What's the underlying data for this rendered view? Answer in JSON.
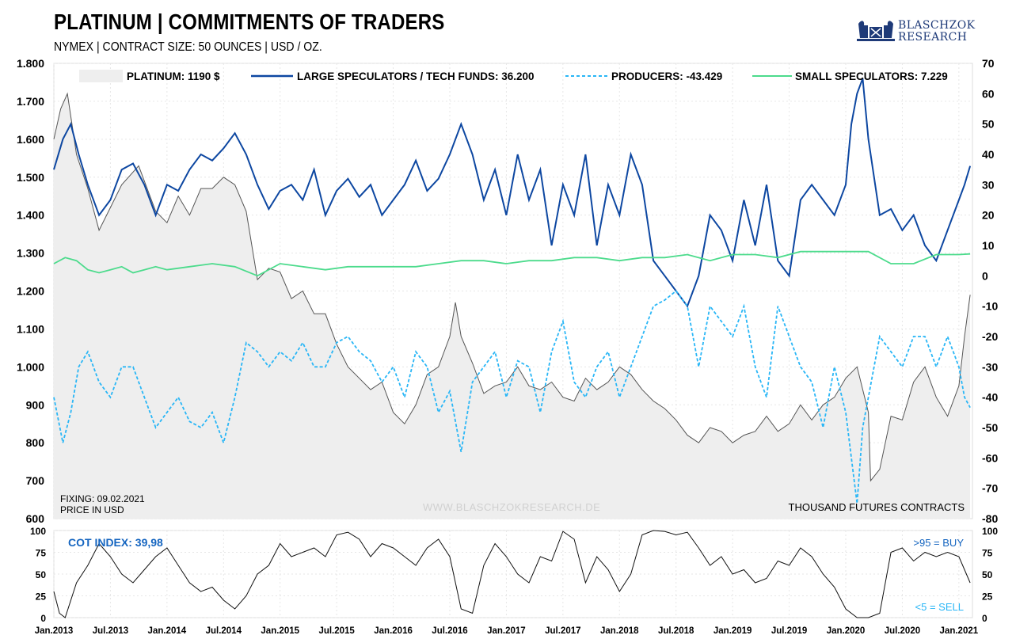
{
  "header": {
    "title": "PLATINUM | COMMITMENTS OF TRADERS",
    "subtitle": "NYMEX | CONTRACT SIZE: 50 OUNCES | USD / OZ."
  },
  "logo": {
    "line1": "BLASCHZOK",
    "line2": "RESEARCH"
  },
  "legend": {
    "platinum": "PLATINUM: 1190 $",
    "large_spec": "LARGE SPECULATORS / TECH FUNDS: 36.200",
    "producers": "PRODUCERS: -43.429",
    "small_spec": "SMALL SPECULATORS: 7.229"
  },
  "annotations": {
    "fixing": "FIXING: 09.02.2021",
    "price_in": "PRICE IN USD",
    "watermark": "WWW.BLASCHZOKRESEARCH.DE",
    "thousand": "THOUSAND  FUTURES  CONTRACTS",
    "cot_index": "COT INDEX: 39,98",
    "buy_signal": ">95 = BUY",
    "sell_signal": "<5 = SELL"
  },
  "colors": {
    "platinum_fill": "#eeeeee",
    "platinum_line": "#555555",
    "large_spec": "#0d47a1",
    "producers": "#29b6f6",
    "small_spec": "#4cdb8c",
    "cot_line": "#111111",
    "accent_blue": "#1565c0"
  },
  "chart_data": [
    {
      "type": "line",
      "title": "PLATINUM | COMMITMENTS OF TRADERS",
      "x_ticks": [
        "Jan.2013",
        "Jul.2013",
        "Jan.2014",
        "Jul.2014",
        "Jan.2015",
        "Jul.2015",
        "Jan.2016",
        "Jul.2016",
        "Jan.2017",
        "Jul.2017",
        "Jan.2018",
        "Jul.2018",
        "Jan.2019",
        "Jul.2019",
        "Jan.2020",
        "Jul.2020",
        "Jan.2021"
      ],
      "x_range": [
        2013.0,
        2021.12
      ],
      "left_axis": {
        "label": "PRICE IN USD",
        "range": [
          600,
          1800
        ],
        "ticks": [
          "600",
          "700",
          "800",
          "900",
          "1.000",
          "1.100",
          "1.200",
          "1.300",
          "1.400",
          "1.500",
          "1.600",
          "1.700",
          "1.800"
        ]
      },
      "right_axis": {
        "label": "THOUSAND FUTURES CONTRACTS",
        "range": [
          -80,
          70
        ],
        "ticks": [
          "-80",
          "-70",
          "-60",
          "-50",
          "-40",
          "-30",
          "-20",
          "-10",
          "0",
          "10",
          "20",
          "30",
          "40",
          "50",
          "60",
          "70"
        ]
      },
      "grid": true,
      "legend_position": "top",
      "series": [
        {
          "name": "PLATINUM",
          "axis": "left",
          "style": "area",
          "x": [
            2013.0,
            2013.06,
            2013.12,
            2013.2,
            2013.3,
            2013.4,
            2013.5,
            2013.6,
            2013.75,
            2013.9,
            2014.0,
            2014.1,
            2014.2,
            2014.3,
            2014.4,
            2014.5,
            2014.6,
            2014.7,
            2014.8,
            2014.9,
            2015.0,
            2015.1,
            2015.2,
            2015.3,
            2015.4,
            2015.5,
            2015.6,
            2015.7,
            2015.8,
            2015.9,
            2016.0,
            2016.1,
            2016.2,
            2016.3,
            2016.4,
            2016.5,
            2016.55,
            2016.6,
            2016.7,
            2016.8,
            2016.9,
            2017.0,
            2017.1,
            2017.2,
            2017.3,
            2017.4,
            2017.5,
            2017.6,
            2017.7,
            2017.8,
            2017.9,
            2018.0,
            2018.1,
            2018.2,
            2018.3,
            2018.4,
            2018.5,
            2018.6,
            2018.7,
            2018.8,
            2018.9,
            2019.0,
            2019.1,
            2019.2,
            2019.3,
            2019.4,
            2019.5,
            2019.6,
            2019.7,
            2019.8,
            2019.9,
            2020.0,
            2020.1,
            2020.2,
            2020.22,
            2020.3,
            2020.4,
            2020.5,
            2020.6,
            2020.7,
            2020.8,
            2020.9,
            2021.0,
            2021.05,
            2021.1
          ],
          "y": [
            1600,
            1680,
            1720,
            1560,
            1470,
            1360,
            1420,
            1480,
            1530,
            1410,
            1380,
            1450,
            1400,
            1470,
            1470,
            1500,
            1480,
            1410,
            1230,
            1260,
            1250,
            1180,
            1200,
            1140,
            1140,
            1060,
            1000,
            970,
            940,
            960,
            880,
            850,
            900,
            980,
            1000,
            1080,
            1170,
            1080,
            1010,
            930,
            950,
            960,
            1000,
            950,
            940,
            960,
            920,
            910,
            970,
            940,
            960,
            1000,
            980,
            940,
            910,
            890,
            860,
            820,
            800,
            840,
            830,
            800,
            820,
            830,
            870,
            830,
            850,
            900,
            860,
            900,
            920,
            970,
            1000,
            880,
            700,
            730,
            870,
            860,
            960,
            1000,
            920,
            870,
            950,
            1080,
            1190
          ]
        },
        {
          "name": "LARGE SPECULATORS / TECH FUNDS",
          "axis": "right",
          "style": "solid",
          "x": [
            2013.0,
            2013.08,
            2013.15,
            2013.22,
            2013.3,
            2013.4,
            2013.5,
            2013.6,
            2013.7,
            2013.8,
            2013.9,
            2014.0,
            2014.1,
            2014.2,
            2014.3,
            2014.4,
            2014.5,
            2014.6,
            2014.7,
            2014.8,
            2014.9,
            2015.0,
            2015.1,
            2015.2,
            2015.3,
            2015.4,
            2015.5,
            2015.6,
            2015.7,
            2015.8,
            2015.9,
            2016.0,
            2016.1,
            2016.2,
            2016.3,
            2016.4,
            2016.5,
            2016.6,
            2016.7,
            2016.8,
            2016.9,
            2017.0,
            2017.1,
            2017.2,
            2017.3,
            2017.4,
            2017.5,
            2017.6,
            2017.7,
            2017.8,
            2017.9,
            2018.0,
            2018.1,
            2018.2,
            2018.3,
            2018.4,
            2018.5,
            2018.6,
            2018.7,
            2018.8,
            2018.9,
            2019.0,
            2019.1,
            2019.2,
            2019.3,
            2019.4,
            2019.5,
            2019.6,
            2019.7,
            2019.8,
            2019.9,
            2020.0,
            2020.05,
            2020.1,
            2020.15,
            2020.2,
            2020.3,
            2020.4,
            2020.5,
            2020.6,
            2020.7,
            2020.8,
            2020.9,
            2021.0,
            2021.05,
            2021.1
          ],
          "y": [
            35,
            45,
            50,
            40,
            30,
            20,
            25,
            35,
            37,
            30,
            20,
            30,
            28,
            35,
            40,
            38,
            42,
            47,
            40,
            30,
            22,
            28,
            30,
            25,
            35,
            20,
            28,
            32,
            26,
            30,
            20,
            25,
            30,
            38,
            28,
            32,
            40,
            50,
            40,
            25,
            35,
            20,
            40,
            25,
            35,
            10,
            30,
            20,
            40,
            10,
            30,
            20,
            40,
            30,
            5,
            0,
            -5,
            -10,
            0,
            20,
            15,
            5,
            25,
            10,
            30,
            5,
            0,
            25,
            30,
            25,
            20,
            30,
            50,
            60,
            65,
            45,
            20,
            22,
            15,
            20,
            10,
            5,
            15,
            25,
            30,
            36.2
          ]
        },
        {
          "name": "PRODUCERS",
          "axis": "right",
          "style": "dashed",
          "x": [
            2013.0,
            2013.08,
            2013.15,
            2013.22,
            2013.3,
            2013.4,
            2013.5,
            2013.6,
            2013.7,
            2013.8,
            2013.9,
            2014.0,
            2014.1,
            2014.2,
            2014.3,
            2014.4,
            2014.5,
            2014.6,
            2014.7,
            2014.8,
            2014.9,
            2015.0,
            2015.1,
            2015.2,
            2015.3,
            2015.4,
            2015.5,
            2015.6,
            2015.7,
            2015.8,
            2015.9,
            2016.0,
            2016.1,
            2016.2,
            2016.3,
            2016.4,
            2016.5,
            2016.6,
            2016.7,
            2016.8,
            2016.9,
            2017.0,
            2017.1,
            2017.2,
            2017.3,
            2017.4,
            2017.5,
            2017.6,
            2017.7,
            2017.8,
            2017.9,
            2018.0,
            2018.1,
            2018.2,
            2018.3,
            2018.4,
            2018.5,
            2018.6,
            2018.7,
            2018.8,
            2018.9,
            2019.0,
            2019.1,
            2019.2,
            2019.3,
            2019.4,
            2019.5,
            2019.6,
            2019.7,
            2019.8,
            2019.9,
            2020.0,
            2020.05,
            2020.1,
            2020.15,
            2020.2,
            2020.3,
            2020.4,
            2020.5,
            2020.6,
            2020.7,
            2020.8,
            2020.9,
            2021.0,
            2021.05,
            2021.1
          ],
          "y": [
            -40,
            -55,
            -45,
            -30,
            -25,
            -35,
            -40,
            -30,
            -30,
            -40,
            -50,
            -45,
            -40,
            -48,
            -50,
            -45,
            -55,
            -40,
            -22,
            -25,
            -30,
            -25,
            -28,
            -22,
            -30,
            -30,
            -22,
            -20,
            -25,
            -28,
            -35,
            -30,
            -40,
            -25,
            -30,
            -45,
            -38,
            -58,
            -35,
            -30,
            -25,
            -40,
            -28,
            -30,
            -45,
            -25,
            -15,
            -35,
            -40,
            -30,
            -25,
            -40,
            -30,
            -20,
            -10,
            -8,
            -5,
            -10,
            -30,
            -10,
            -15,
            -20,
            -10,
            -30,
            -40,
            -10,
            -20,
            -30,
            -35,
            -50,
            -30,
            -45,
            -60,
            -75,
            -50,
            -40,
            -20,
            -25,
            -30,
            -20,
            -20,
            -30,
            -20,
            -30,
            -40,
            -43.4
          ]
        },
        {
          "name": "SMALL SPECULATORS",
          "axis": "right",
          "style": "solid",
          "x": [
            2013.0,
            2013.1,
            2013.2,
            2013.3,
            2013.4,
            2013.5,
            2013.6,
            2013.7,
            2013.8,
            2013.9,
            2014.0,
            2014.2,
            2014.4,
            2014.6,
            2014.8,
            2015.0,
            2015.2,
            2015.4,
            2015.6,
            2015.8,
            2016.0,
            2016.2,
            2016.4,
            2016.6,
            2016.8,
            2017.0,
            2017.2,
            2017.4,
            2017.6,
            2017.8,
            2018.0,
            2018.2,
            2018.4,
            2018.6,
            2018.8,
            2019.0,
            2019.2,
            2019.4,
            2019.6,
            2019.8,
            2020.0,
            2020.2,
            2020.4,
            2020.6,
            2020.8,
            2021.0,
            2021.1
          ],
          "y": [
            4,
            6,
            5,
            2,
            1,
            2,
            3,
            1,
            2,
            3,
            2,
            3,
            4,
            3,
            0,
            4,
            3,
            2,
            3,
            3,
            3,
            3,
            4,
            5,
            5,
            4,
            5,
            5,
            6,
            6,
            5,
            6,
            6,
            7,
            5,
            7,
            7,
            6,
            8,
            8,
            8,
            8,
            4,
            4,
            7,
            7,
            7.2
          ]
        }
      ]
    },
    {
      "type": "line",
      "title": "COT INDEX",
      "y_range": [
        0,
        100
      ],
      "y_ticks": [
        "0",
        "25",
        "50",
        "75",
        "100"
      ],
      "series": [
        {
          "name": "COT INDEX",
          "x": [
            2013.0,
            2013.05,
            2013.1,
            2013.2,
            2013.3,
            2013.4,
            2013.5,
            2013.6,
            2013.7,
            2013.8,
            2013.9,
            2014.0,
            2014.1,
            2014.2,
            2014.3,
            2014.4,
            2014.5,
            2014.6,
            2014.7,
            2014.8,
            2014.9,
            2015.0,
            2015.1,
            2015.2,
            2015.3,
            2015.4,
            2015.5,
            2015.6,
            2015.7,
            2015.8,
            2015.9,
            2016.0,
            2016.1,
            2016.2,
            2016.3,
            2016.4,
            2016.5,
            2016.6,
            2016.7,
            2016.8,
            2016.9,
            2017.0,
            2017.1,
            2017.2,
            2017.3,
            2017.4,
            2017.5,
            2017.6,
            2017.7,
            2017.8,
            2017.9,
            2018.0,
            2018.1,
            2018.2,
            2018.3,
            2018.4,
            2018.5,
            2018.6,
            2018.7,
            2018.8,
            2018.9,
            2019.0,
            2019.1,
            2019.2,
            2019.3,
            2019.4,
            2019.5,
            2019.6,
            2019.7,
            2019.8,
            2019.9,
            2020.0,
            2020.1,
            2020.2,
            2020.3,
            2020.4,
            2020.5,
            2020.6,
            2020.7,
            2020.8,
            2020.9,
            2021.0,
            2021.05,
            2021.1
          ],
          "y": [
            30,
            5,
            0,
            40,
            60,
            85,
            70,
            50,
            40,
            55,
            70,
            80,
            60,
            40,
            30,
            35,
            20,
            10,
            25,
            50,
            60,
            85,
            70,
            75,
            80,
            70,
            95,
            98,
            90,
            70,
            85,
            80,
            70,
            60,
            80,
            90,
            70,
            10,
            5,
            60,
            85,
            70,
            50,
            40,
            70,
            65,
            99,
            90,
            40,
            70,
            55,
            30,
            50,
            95,
            100,
            99,
            95,
            98,
            80,
            60,
            70,
            50,
            55,
            40,
            45,
            65,
            60,
            80,
            70,
            50,
            35,
            10,
            0,
            0,
            5,
            75,
            80,
            65,
            75,
            70,
            75,
            70,
            55,
            40
          ]
        }
      ]
    }
  ]
}
